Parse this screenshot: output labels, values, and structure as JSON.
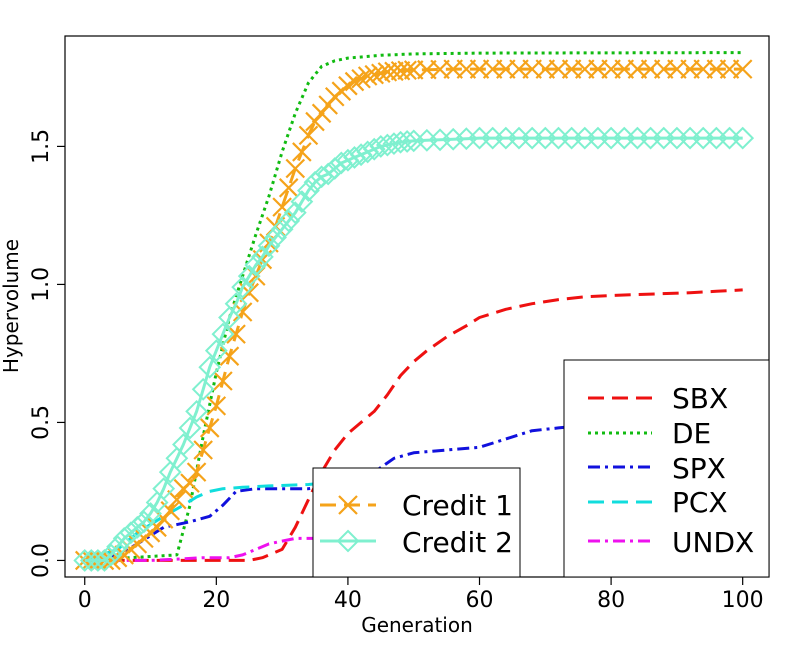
{
  "chart_data": {
    "type": "line",
    "xlabel": "Generation",
    "ylabel": "Hypervolume",
    "xlim": [
      -3,
      104
    ],
    "ylim": [
      -0.06,
      1.9
    ],
    "xticks": [
      0,
      20,
      40,
      60,
      80,
      100
    ],
    "yticks": [
      0.0,
      0.5,
      1.0,
      1.5
    ],
    "xtick_labels": [
      "0",
      "20",
      "40",
      "60",
      "80",
      "100"
    ],
    "ytick_labels": [
      "0.0",
      "0.5",
      "1.0",
      "1.5"
    ],
    "grid": false,
    "legends": [
      {
        "placement": "bottom-center",
        "entries": [
          "Credit 1",
          "Credit 2"
        ]
      },
      {
        "placement": "bottom-right",
        "entries": [
          "SBX",
          "DE",
          "SPX",
          "PCX",
          "UNDX"
        ]
      }
    ],
    "series": [
      {
        "name": "SBX",
        "color": "#ee1111",
        "dash": "long-dash",
        "x": [
          0,
          25,
          27,
          30,
          32,
          34,
          36,
          38,
          40,
          42,
          44,
          46,
          48,
          50,
          52,
          55,
          58,
          60,
          64,
          68,
          72,
          76,
          80,
          86,
          92,
          96,
          100
        ],
        "y": [
          0,
          0,
          0.01,
          0.04,
          0.12,
          0.22,
          0.32,
          0.4,
          0.46,
          0.5,
          0.54,
          0.6,
          0.67,
          0.72,
          0.76,
          0.81,
          0.85,
          0.88,
          0.91,
          0.93,
          0.945,
          0.955,
          0.96,
          0.965,
          0.97,
          0.975,
          0.98
        ]
      },
      {
        "name": "DE",
        "color": "#11bb11",
        "dash": "dotted",
        "x": [
          0,
          14,
          16,
          18,
          20,
          22,
          24,
          26,
          28,
          30,
          32,
          34,
          36,
          38,
          40,
          45,
          50,
          60,
          100
        ],
        "y": [
          0,
          0.02,
          0.2,
          0.45,
          0.68,
          0.88,
          1.03,
          1.18,
          1.32,
          1.48,
          1.62,
          1.73,
          1.79,
          1.81,
          1.82,
          1.83,
          1.835,
          1.838,
          1.84
        ]
      },
      {
        "name": "SPX",
        "color": "#1111dd",
        "dash": "dash-dot",
        "x": [
          0,
          5,
          8,
          12,
          16,
          19,
          21,
          23,
          26,
          30,
          34,
          37,
          40,
          44,
          47,
          50,
          55,
          60,
          64,
          68,
          72,
          76,
          80
        ],
        "y": [
          0,
          0.02,
          0.06,
          0.12,
          0.14,
          0.16,
          0.2,
          0.25,
          0.26,
          0.26,
          0.26,
          0.27,
          0.28,
          0.32,
          0.37,
          0.39,
          0.4,
          0.41,
          0.44,
          0.47,
          0.48,
          0.49,
          0.5
        ]
      },
      {
        "name": "PCX",
        "color": "#11dddd",
        "dash": "long-dash",
        "x": [
          0,
          5,
          8,
          12,
          15,
          17,
          19,
          21,
          24,
          28,
          34,
          36
        ],
        "y": [
          0,
          0.04,
          0.1,
          0.16,
          0.2,
          0.23,
          0.25,
          0.26,
          0.265,
          0.27,
          0.275,
          0.28
        ]
      },
      {
        "name": "UNDX",
        "color": "#ee11ee",
        "dash": "dash-dot",
        "x": [
          0,
          10,
          14,
          18,
          22,
          24,
          26,
          28,
          30,
          32,
          36
        ],
        "y": [
          0,
          0,
          0.005,
          0.01,
          0.01,
          0.02,
          0.04,
          0.06,
          0.07,
          0.08,
          0.08
        ]
      },
      {
        "name": "Credit 1",
        "color": "#f5a31a",
        "dash": "long-dash",
        "marker": "x",
        "x": [
          0,
          1,
          2,
          3,
          4,
          5,
          6,
          7,
          8,
          9,
          10,
          11,
          12,
          13,
          14,
          15,
          16,
          17,
          18,
          19,
          20,
          21,
          22,
          23,
          24,
          25,
          26,
          27,
          28,
          29,
          30,
          31,
          32,
          33,
          34,
          35,
          36,
          37,
          38,
          39,
          40,
          41,
          42,
          43,
          44,
          45,
          46,
          47,
          48,
          49,
          50,
          52,
          54,
          56,
          58,
          60,
          62,
          64,
          66,
          68,
          70,
          72,
          74,
          76,
          78,
          80,
          82,
          84,
          86,
          88,
          90,
          92,
          94,
          96,
          98,
          100
        ],
        "y": [
          0,
          0,
          0,
          0,
          0,
          0.01,
          0.02,
          0.04,
          0.06,
          0.08,
          0.1,
          0.12,
          0.15,
          0.18,
          0.22,
          0.26,
          0.28,
          0.32,
          0.4,
          0.48,
          0.56,
          0.65,
          0.74,
          0.82,
          0.9,
          0.97,
          1.03,
          1.09,
          1.15,
          1.21,
          1.28,
          1.35,
          1.42,
          1.48,
          1.54,
          1.59,
          1.62,
          1.65,
          1.68,
          1.7,
          1.72,
          1.735,
          1.745,
          1.755,
          1.76,
          1.765,
          1.77,
          1.772,
          1.774,
          1.776,
          1.777,
          1.778,
          1.779,
          1.78,
          1.78,
          1.78,
          1.78,
          1.78,
          1.78,
          1.78,
          1.78,
          1.78,
          1.78,
          1.78,
          1.78,
          1.78,
          1.78,
          1.78,
          1.78,
          1.78,
          1.78,
          1.78,
          1.78,
          1.78,
          1.78,
          1.78
        ]
      },
      {
        "name": "Credit 2",
        "color": "#7ff0cf",
        "dash": "solid",
        "marker": "diamond",
        "x": [
          0,
          1,
          2,
          3,
          4,
          5,
          6,
          7,
          8,
          9,
          10,
          11,
          12,
          13,
          14,
          15,
          16,
          17,
          18,
          19,
          20,
          21,
          22,
          23,
          24,
          25,
          26,
          27,
          28,
          29,
          30,
          31,
          32,
          33,
          34,
          35,
          36,
          37,
          38,
          39,
          40,
          41,
          42,
          43,
          44,
          45,
          46,
          47,
          48,
          49,
          50,
          52,
          54,
          56,
          58,
          60,
          62,
          64,
          66,
          68,
          70,
          72,
          74,
          76,
          78,
          80,
          82,
          84,
          86,
          88,
          90,
          92,
          94,
          96,
          98,
          100
        ],
        "y": [
          0,
          0,
          0,
          0,
          0.02,
          0.05,
          0.08,
          0.1,
          0.12,
          0.14,
          0.17,
          0.21,
          0.26,
          0.32,
          0.37,
          0.42,
          0.48,
          0.54,
          0.62,
          0.7,
          0.76,
          0.82,
          0.88,
          0.93,
          0.99,
          1.03,
          1.07,
          1.1,
          1.14,
          1.17,
          1.2,
          1.23,
          1.26,
          1.3,
          1.34,
          1.37,
          1.39,
          1.4,
          1.42,
          1.44,
          1.45,
          1.46,
          1.47,
          1.48,
          1.49,
          1.5,
          1.505,
          1.51,
          1.515,
          1.518,
          1.52,
          1.522,
          1.524,
          1.526,
          1.528,
          1.53,
          1.53,
          1.53,
          1.53,
          1.53,
          1.53,
          1.53,
          1.53,
          1.53,
          1.53,
          1.53,
          1.53,
          1.53,
          1.53,
          1.53,
          1.53,
          1.53,
          1.53,
          1.53,
          1.53,
          1.53
        ]
      }
    ]
  }
}
